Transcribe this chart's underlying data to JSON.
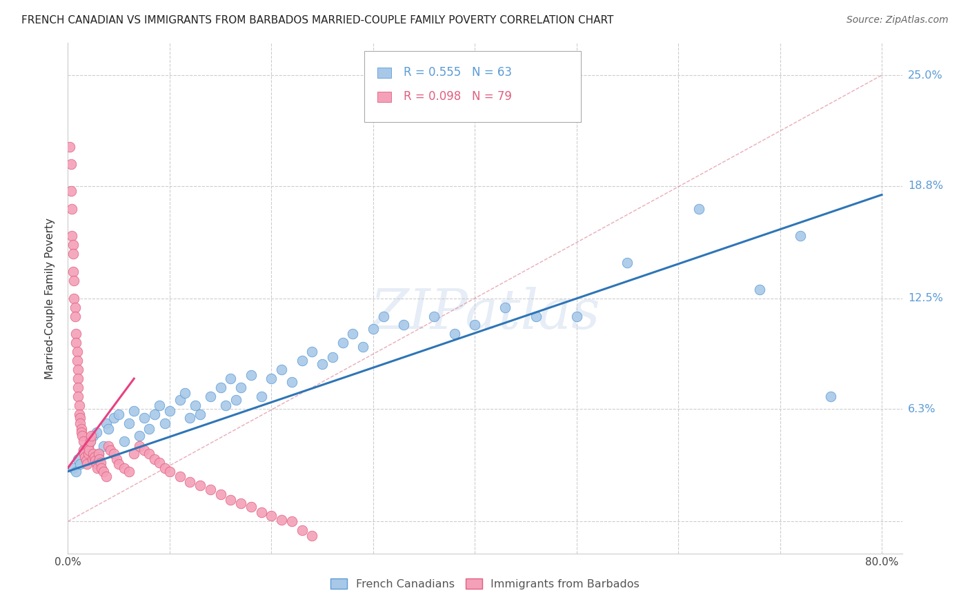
{
  "title": "FRENCH CANADIAN VS IMMIGRANTS FROM BARBADOS MARRIED-COUPLE FAMILY POVERTY CORRELATION CHART",
  "source": "Source: ZipAtlas.com",
  "ylabel": "Married-Couple Family Poverty",
  "xlim": [
    0.0,
    0.82
  ],
  "ylim": [
    -0.018,
    0.268
  ],
  "blue_color": "#a8c8e8",
  "pink_color": "#f4a0b8",
  "blue_edge_color": "#5b9bd5",
  "pink_edge_color": "#e06080",
  "blue_line_color": "#2e75b6",
  "pink_line_color": "#e84080",
  "diag_color": "#f0a0b0",
  "legend_blue_R": "R = 0.555",
  "legend_blue_N": "N = 63",
  "legend_pink_R": "R = 0.098",
  "legend_pink_N": "N = 79",
  "legend_blue_label": "French Canadians",
  "legend_pink_label": "Immigrants from Barbados",
  "right_label_color": "#5b9bd5",
  "ytick_vals": [
    0.0,
    0.063,
    0.125,
    0.188,
    0.25
  ],
  "ytick_labels": [
    "",
    "6.3%",
    "12.5%",
    "18.8%",
    "25.0%"
  ],
  "blue_scatter_x": [
    0.005,
    0.008,
    0.01,
    0.012,
    0.015,
    0.018,
    0.02,
    0.022,
    0.025,
    0.028,
    0.03,
    0.035,
    0.038,
    0.04,
    0.045,
    0.05,
    0.055,
    0.06,
    0.065,
    0.07,
    0.075,
    0.08,
    0.085,
    0.09,
    0.095,
    0.1,
    0.11,
    0.115,
    0.12,
    0.125,
    0.13,
    0.14,
    0.15,
    0.155,
    0.16,
    0.165,
    0.17,
    0.18,
    0.19,
    0.2,
    0.21,
    0.22,
    0.23,
    0.24,
    0.25,
    0.26,
    0.27,
    0.28,
    0.29,
    0.3,
    0.31,
    0.33,
    0.36,
    0.38,
    0.4,
    0.43,
    0.46,
    0.5,
    0.55,
    0.62,
    0.68,
    0.72,
    0.75
  ],
  "blue_scatter_y": [
    0.03,
    0.028,
    0.035,
    0.032,
    0.04,
    0.038,
    0.042,
    0.045,
    0.048,
    0.05,
    0.038,
    0.042,
    0.055,
    0.052,
    0.058,
    0.06,
    0.045,
    0.055,
    0.062,
    0.048,
    0.058,
    0.052,
    0.06,
    0.065,
    0.055,
    0.062,
    0.068,
    0.072,
    0.058,
    0.065,
    0.06,
    0.07,
    0.075,
    0.065,
    0.08,
    0.068,
    0.075,
    0.082,
    0.07,
    0.08,
    0.085,
    0.078,
    0.09,
    0.095,
    0.088,
    0.092,
    0.1,
    0.105,
    0.098,
    0.108,
    0.115,
    0.11,
    0.115,
    0.105,
    0.11,
    0.12,
    0.115,
    0.115,
    0.145,
    0.175,
    0.13,
    0.16,
    0.07
  ],
  "pink_scatter_x": [
    0.002,
    0.003,
    0.003,
    0.004,
    0.004,
    0.005,
    0.005,
    0.005,
    0.006,
    0.006,
    0.007,
    0.007,
    0.008,
    0.008,
    0.009,
    0.009,
    0.01,
    0.01,
    0.01,
    0.01,
    0.011,
    0.011,
    0.012,
    0.012,
    0.013,
    0.013,
    0.014,
    0.015,
    0.015,
    0.016,
    0.017,
    0.018,
    0.019,
    0.02,
    0.02,
    0.021,
    0.022,
    0.023,
    0.024,
    0.025,
    0.026,
    0.027,
    0.028,
    0.029,
    0.03,
    0.031,
    0.032,
    0.033,
    0.035,
    0.038,
    0.04,
    0.042,
    0.045,
    0.048,
    0.05,
    0.055,
    0.06,
    0.065,
    0.07,
    0.075,
    0.08,
    0.085,
    0.09,
    0.095,
    0.1,
    0.11,
    0.12,
    0.13,
    0.14,
    0.15,
    0.16,
    0.17,
    0.18,
    0.19,
    0.2,
    0.21,
    0.22,
    0.23,
    0.24
  ],
  "pink_scatter_y": [
    0.21,
    0.2,
    0.185,
    0.175,
    0.16,
    0.155,
    0.15,
    0.14,
    0.135,
    0.125,
    0.12,
    0.115,
    0.105,
    0.1,
    0.095,
    0.09,
    0.085,
    0.08,
    0.075,
    0.07,
    0.065,
    0.06,
    0.058,
    0.055,
    0.052,
    0.05,
    0.048,
    0.045,
    0.04,
    0.038,
    0.036,
    0.034,
    0.032,
    0.038,
    0.042,
    0.04,
    0.045,
    0.048,
    0.035,
    0.038,
    0.036,
    0.034,
    0.032,
    0.03,
    0.038,
    0.035,
    0.033,
    0.03,
    0.028,
    0.025,
    0.042,
    0.04,
    0.038,
    0.035,
    0.032,
    0.03,
    0.028,
    0.038,
    0.042,
    0.04,
    0.038,
    0.035,
    0.033,
    0.03,
    0.028,
    0.025,
    0.022,
    0.02,
    0.018,
    0.015,
    0.012,
    0.01,
    0.008,
    0.005,
    0.003,
    0.001,
    0.0,
    -0.005,
    -0.008
  ],
  "blue_line_x": [
    0.0,
    0.8
  ],
  "blue_line_y": [
    0.028,
    0.183
  ],
  "pink_line_x": [
    0.0,
    0.065
  ],
  "pink_line_y": [
    0.03,
    0.08
  ],
  "diag_line_x": [
    0.0,
    0.8
  ],
  "diag_line_y": [
    0.0,
    0.25
  ]
}
